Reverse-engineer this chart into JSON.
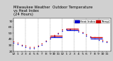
{
  "title_line1": "Milwaukee Weather  Outdoor Temperature",
  "title_line2": "vs Heat Index",
  "title_line3": "(24 Hours)",
  "background_color": "#d0d0d0",
  "plot_bg": "#ffffff",
  "red_color": "#cc0000",
  "blue_color": "#0000cc",
  "black_dot_color": "#000000",
  "xlim": [
    0,
    24
  ],
  "ylim": [
    20,
    75
  ],
  "x_ticks": [
    0,
    1,
    2,
    3,
    4,
    5,
    6,
    7,
    8,
    9,
    10,
    11,
    12,
    13,
    14,
    15,
    16,
    17,
    18,
    19,
    20,
    21,
    22,
    23
  ],
  "x_tick_labels": [
    "12",
    "1",
    "2",
    "3",
    "4",
    "5",
    "6",
    "7",
    "8",
    "9",
    "10",
    "11",
    "12",
    "1",
    "2",
    "3",
    "4",
    "5",
    "6",
    "7",
    "8",
    "9",
    "10",
    "11"
  ],
  "temp_data_x": [
    0,
    1,
    2,
    3,
    4,
    5,
    6,
    7,
    8,
    9,
    10,
    11,
    12,
    13,
    14,
    15,
    16,
    17,
    18,
    19,
    20,
    21,
    22,
    23
  ],
  "temp_data_y": [
    36,
    34,
    31,
    29,
    27,
    27,
    30,
    33,
    38,
    43,
    47,
    51,
    56,
    58,
    58,
    57,
    55,
    52,
    48,
    45,
    43,
    41,
    39,
    37
  ],
  "heat_data_x": [
    0,
    1,
    2,
    3,
    4,
    5,
    6,
    7,
    8,
    9,
    10,
    11,
    12,
    13,
    14,
    15,
    16,
    17,
    18,
    19,
    20,
    21,
    22,
    23
  ],
  "heat_data_y": [
    34,
    32,
    29,
    27,
    25,
    25,
    28,
    31,
    36,
    41,
    45,
    49,
    54,
    56,
    56,
    55,
    53,
    50,
    46,
    43,
    41,
    39,
    37,
    35
  ],
  "temp_hlines": [
    [
      9,
      12,
      46
    ],
    [
      13,
      16,
      57
    ],
    [
      19,
      22,
      44
    ]
  ],
  "heat_hlines": [
    [
      9,
      12,
      43
    ],
    [
      13,
      16,
      55
    ],
    [
      19,
      22,
      41
    ]
  ],
  "vlines_x": [
    0,
    3,
    6,
    9,
    12,
    15,
    18,
    21,
    24
  ],
  "y_ticks": [
    20,
    30,
    40,
    50,
    60,
    70
  ],
  "y_tick_labels": [
    "20",
    "30",
    "40",
    "50",
    "60",
    "70"
  ],
  "legend_temp_label": "Temp",
  "legend_heat_label": "Heat Index",
  "title_fontsize": 3.8,
  "tick_fontsize": 3.2,
  "legend_fontsize": 3.0,
  "dot_size": 1.2,
  "hline_lw": 0.9
}
